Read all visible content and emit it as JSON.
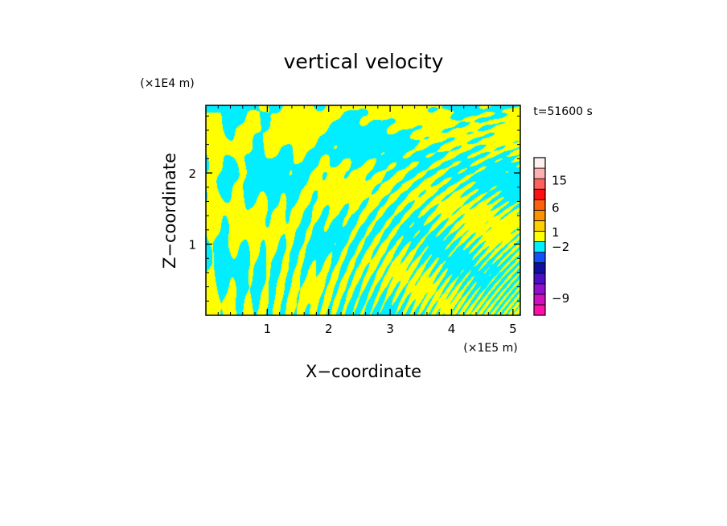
{
  "chart_data": {
    "type": "heatmap",
    "title": "vertical velocity",
    "xlabel": "X−coordinate",
    "ylabel": "Z−coordinate",
    "x_unit": "(×1E5 m)",
    "y_unit": "(×1E4 m)",
    "time_label": "t=51600 s",
    "xlim": [
      0,
      5.12
    ],
    "ylim": [
      0,
      2.95
    ],
    "x_ticks": [
      {
        "value": 1,
        "label": "1"
      },
      {
        "value": 2,
        "label": "2"
      },
      {
        "value": 3,
        "label": "3"
      },
      {
        "value": 4,
        "label": "4"
      },
      {
        "value": 5,
        "label": "5"
      }
    ],
    "y_ticks": [
      {
        "value": 1,
        "label": "1"
      },
      {
        "value": 2,
        "label": "2"
      }
    ],
    "field_colors": {
      "positive": "#ffff00",
      "negative": "#00eeff"
    },
    "colorbar": {
      "bins": [
        {
          "color": "#ff10a8"
        },
        {
          "color": "#d010c0"
        },
        {
          "color": "#9010d0"
        },
        {
          "color": "#4a10c8"
        },
        {
          "color": "#1010a0"
        },
        {
          "color": "#1050ff"
        },
        {
          "color": "#00eeff"
        },
        {
          "color": "#ffff00"
        },
        {
          "color": "#ffd000"
        },
        {
          "color": "#ff9000"
        },
        {
          "color": "#ff6010"
        },
        {
          "color": "#ff1010"
        },
        {
          "color": "#ff6060"
        },
        {
          "color": "#ffb0b0"
        },
        {
          "color": "#fff0f0"
        }
      ],
      "labels": [
        {
          "text": "15",
          "bin": 12.8
        },
        {
          "text": "6",
          "bin": 10.2
        },
        {
          "text": "1",
          "bin": 7.9
        },
        {
          "text": "−2",
          "bin": 6.5
        },
        {
          "text": "−9",
          "bin": 1.6
        }
      ]
    }
  }
}
